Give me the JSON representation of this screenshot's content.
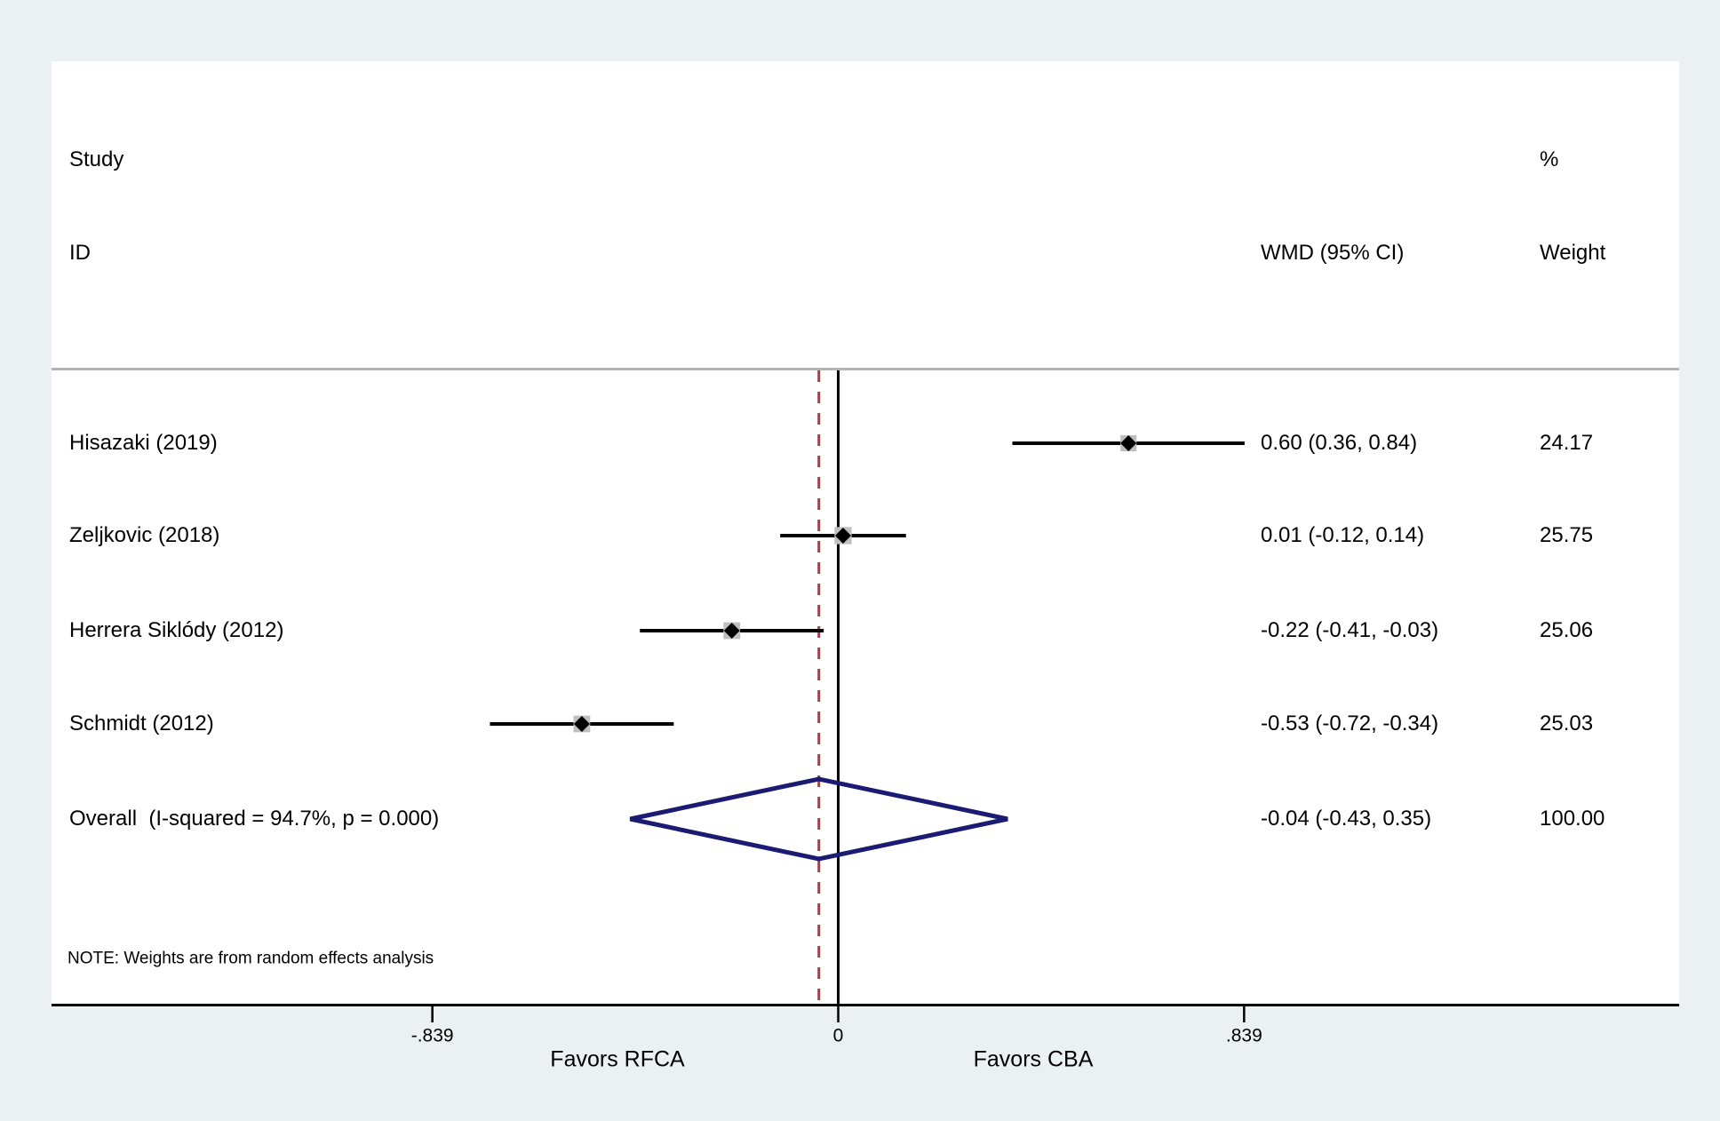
{
  "header": {
    "col_study_line1": "Study",
    "col_study_line2": "ID",
    "col_pct": "%",
    "col_wmd": "WMD (95% CI)",
    "col_weight": "Weight"
  },
  "note": "NOTE: Weights are from random effects analysis",
  "axis": {
    "favors_left": "Favors RFCA",
    "favors_right": "Favors CBA"
  },
  "colors": {
    "background": "#EBF1F2",
    "plot_bg": "#FFFFFF",
    "separator": "#B3B3B3",
    "axis_line": "#000000",
    "zero_line": "#000000",
    "dashed_overall_line": "#9B4249",
    "ci_line": "#000000",
    "marker_diamond": "#000000",
    "weight_square": "#BFBFBF",
    "overall_diamond_stroke": "#1B1B74"
  },
  "chart_data": {
    "type": "forest",
    "effect_measure": "WMD",
    "null_value": 0,
    "x_ticks": [
      {
        "value": -0.839,
        "label": "-.839"
      },
      {
        "value": 0,
        "label": "0"
      },
      {
        "value": 0.839,
        "label": ".839"
      }
    ],
    "xlim": [
      -0.839,
      0.839
    ],
    "studies": [
      {
        "id": "Hisazaki (2019)",
        "est": 0.6,
        "lo": 0.36,
        "hi": 0.84,
        "weight": 24.17,
        "wmd_label": "0.60 (0.36, 0.84)",
        "weight_label": "24.17"
      },
      {
        "id": "Zeljkovic (2018)",
        "est": 0.01,
        "lo": -0.12,
        "hi": 0.14,
        "weight": 25.75,
        "wmd_label": "0.01 (-0.12, 0.14)",
        "weight_label": "25.75"
      },
      {
        "id": "Herrera Siklódy (2012)",
        "est": -0.22,
        "lo": -0.41,
        "hi": -0.03,
        "weight": 25.06,
        "wmd_label": "-0.22 (-0.41, -0.03)",
        "weight_label": "25.06"
      },
      {
        "id": "Schmidt (2012)",
        "est": -0.53,
        "lo": -0.72,
        "hi": -0.34,
        "weight": 25.03,
        "wmd_label": "-0.53 (-0.72, -0.34)",
        "weight_label": "25.03"
      }
    ],
    "overall": {
      "id": "Overall  (I-squared = 94.7%, p = 0.000)",
      "est": -0.04,
      "lo": -0.43,
      "hi": 0.35,
      "weight": 100.0,
      "wmd_label": "-0.04 (-0.43, 0.35)",
      "weight_label": "100.00"
    },
    "heterogeneity": {
      "i_squared_pct": 94.7,
      "p_value": 0.0
    }
  }
}
